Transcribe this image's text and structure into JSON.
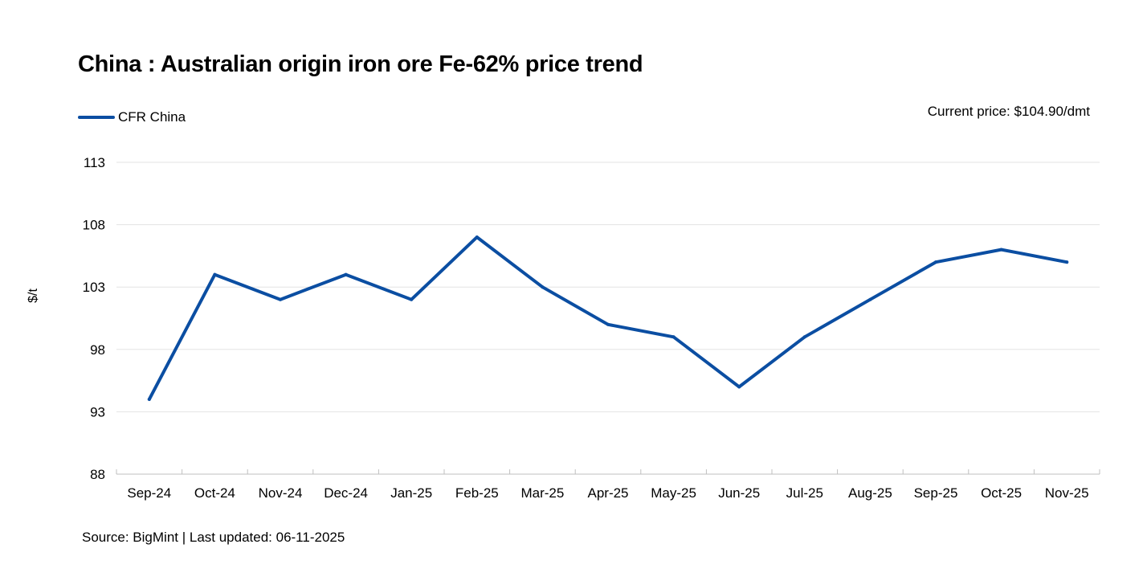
{
  "chart_data": {
    "type": "line",
    "title": "China : Australian origin iron ore Fe-62% price trend",
    "ylabel": "$/t",
    "xlabel": "",
    "ylim": [
      88,
      113
    ],
    "yticks": [
      88,
      93,
      98,
      103,
      108,
      113
    ],
    "grid": true,
    "legend_position": "top-left",
    "categories": [
      "Sep-24",
      "Oct-24",
      "Nov-24",
      "Dec-24",
      "Jan-25",
      "Feb-25",
      "Mar-25",
      "Apr-25",
      "May-25",
      "Jun-25",
      "Jul-25",
      "Aug-25",
      "Sep-25",
      "Oct-25",
      "Nov-25"
    ],
    "series": [
      {
        "name": "CFR China",
        "color": "#0B4EA2",
        "values": [
          94,
          104,
          102,
          104,
          102,
          107,
          103,
          100,
          99,
          95,
          99,
          102,
          105,
          106,
          105
        ]
      }
    ]
  },
  "annotation": "Current price: $104.90/dmt",
  "source": "Source: BigMint | Last updated: 06-11-2025"
}
